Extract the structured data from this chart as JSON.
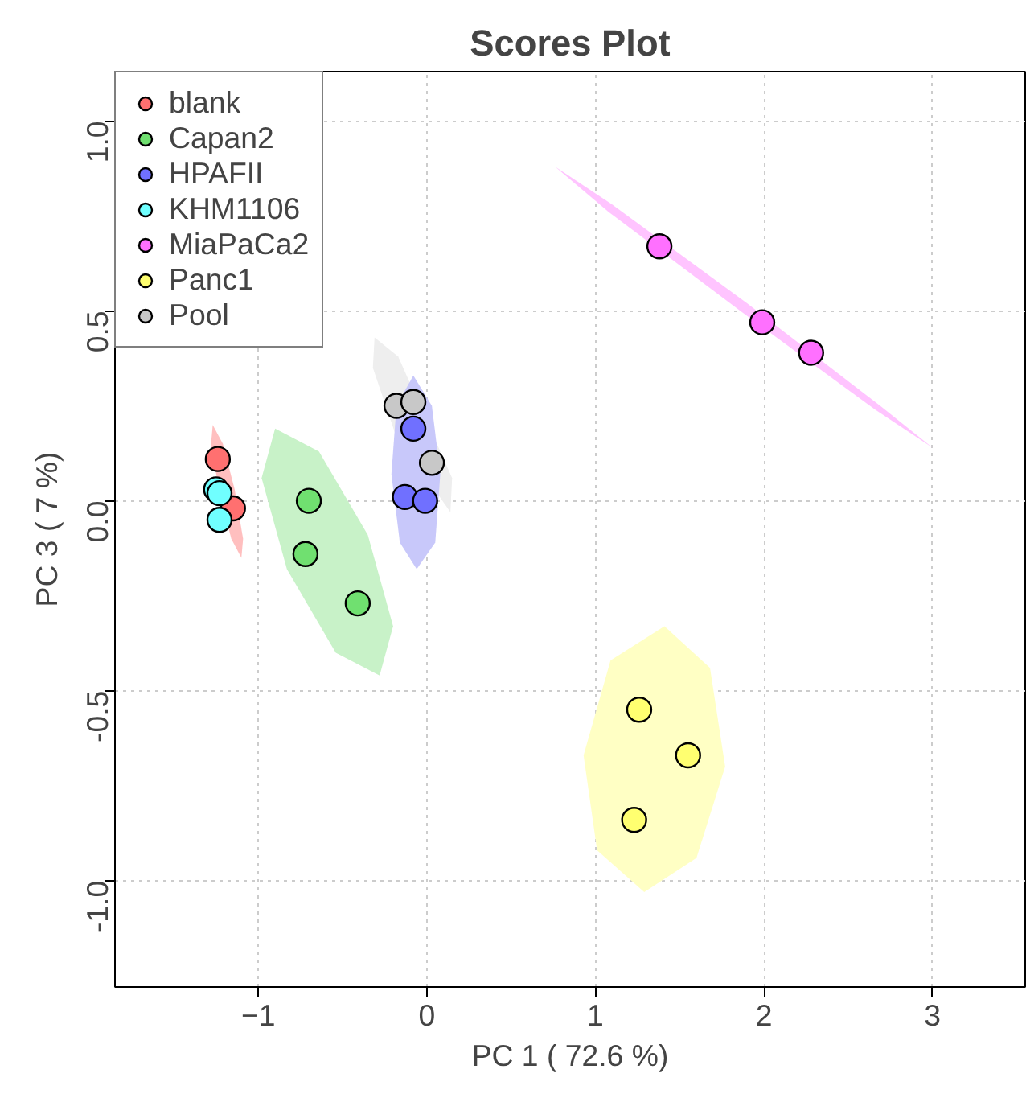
{
  "chart_data": {
    "type": "scatter",
    "title": "Scores Plot",
    "xlabel": "PC 1 ( 72.6 %)",
    "ylabel": "PC 3 ( 7 %)",
    "xlim": [
      -1.85,
      3.55
    ],
    "ylim": [
      -1.28,
      1.13
    ],
    "xticks": [
      -1,
      0,
      1,
      2,
      3
    ],
    "yticks": [
      {
        "value": -1,
        "label": "-1.0"
      },
      {
        "value": -0.5,
        "label": "-0.5"
      },
      {
        "value": 0,
        "label": "0.0"
      },
      {
        "value": 0.5,
        "label": "0.5"
      },
      {
        "value": 1,
        "label": "1.0"
      }
    ],
    "grid": true,
    "legend": "top left",
    "marker": "circle",
    "series": [
      {
        "type": "area",
        "marker": "none",
        "color": "#ffbfbf",
        "x": [
          -1.27,
          -1.21,
          -1.14,
          -1.09,
          -1.1,
          -1.16,
          -1.23,
          -1.28
        ],
        "values": [
          0.2,
          0.15,
          0.03,
          -0.1,
          -0.15,
          -0.1,
          0.02,
          0.15
        ]
      },
      {
        "type": "area",
        "marker": "none",
        "color": "#c8f2c8",
        "x": [
          -0.9,
          -0.64,
          -0.35,
          -0.2,
          -0.28,
          -0.54,
          -0.83,
          -0.98
        ],
        "values": [
          0.19,
          0.13,
          -0.09,
          -0.33,
          -0.46,
          -0.4,
          -0.18,
          0.06
        ]
      },
      {
        "type": "area",
        "marker": "none",
        "color": "#eeeeee",
        "x": [
          -0.31,
          -0.17,
          0.15,
          0.14,
          -0.19,
          -0.32
        ],
        "values": [
          0.43,
          0.38,
          0.06,
          -0.03,
          0.18,
          0.35
        ]
      },
      {
        "type": "area",
        "marker": "none",
        "color": "#c8c8fa",
        "x": [
          -0.08,
          0.03,
          0.08,
          0.05,
          -0.06,
          -0.16,
          -0.21,
          -0.18
        ],
        "values": [
          0.33,
          0.25,
          0.07,
          -0.11,
          -0.18,
          -0.11,
          0.07,
          0.25
        ]
      },
      {
        "type": "area",
        "marker": "none",
        "color": "#ffc4ff",
        "x": [
          0.76,
          1.1,
          1.9,
          2.69,
          3.0,
          2.66,
          1.86,
          1.08
        ],
        "values": [
          0.88,
          0.78,
          0.52,
          0.25,
          0.14,
          0.24,
          0.5,
          0.76
        ]
      },
      {
        "type": "area",
        "marker": "none",
        "color": "#ffffc4",
        "x": [
          1.41,
          1.68,
          1.77,
          1.6,
          1.29,
          1.01,
          0.93,
          1.09
        ],
        "values": [
          -0.33,
          -0.44,
          -0.7,
          -0.94,
          -1.03,
          -0.92,
          -0.67,
          -0.42
        ]
      },
      {
        "name": "blank",
        "color": "#ff7070",
        "x": [
          -1.24,
          -1.15
        ],
        "values": [
          0.11,
          -0.02
        ]
      },
      {
        "name": "Capan2",
        "color": "#70e070",
        "x": [
          -0.7,
          -0.72,
          -0.41
        ],
        "values": [
          0.0,
          -0.14,
          -0.27
        ]
      },
      {
        "name": "HPAFII",
        "color": "#7070ff",
        "x": [
          -0.08,
          -0.13,
          -0.01
        ],
        "values": [
          0.19,
          0.01,
          0.0
        ]
      },
      {
        "name": "KHM1106",
        "color": "#70ffff",
        "x": [
          -1.25,
          -1.23,
          -1.23
        ],
        "values": [
          0.03,
          0.02,
          -0.05
        ]
      },
      {
        "name": "MiaPaCa2",
        "color": "#ff70ff",
        "x": [
          1.38,
          1.99,
          2.28
        ],
        "values": [
          0.67,
          0.47,
          0.39
        ]
      },
      {
        "name": "Panc1",
        "color": "#ffff70",
        "x": [
          1.26,
          1.55,
          1.23
        ],
        "values": [
          -0.55,
          -0.67,
          -0.84
        ]
      },
      {
        "name": "Pool",
        "color": "#c8c8c8",
        "x": [
          -0.18,
          -0.08,
          0.03
        ],
        "values": [
          0.25,
          0.26,
          0.1
        ]
      }
    ]
  }
}
